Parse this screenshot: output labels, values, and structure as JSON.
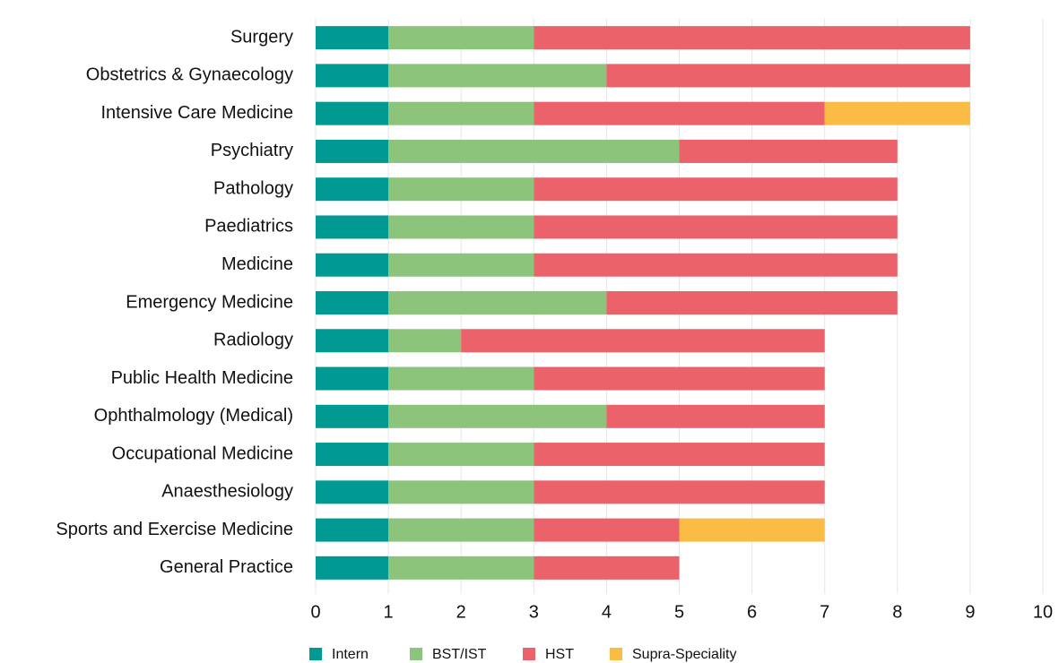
{
  "chart_data": {
    "type": "bar",
    "orientation": "horizontal",
    "stacked": true,
    "categories": [
      "Surgery",
      "Obstetrics & Gynaecology",
      "Intensive Care Medicine",
      "Psychiatry",
      "Pathology",
      "Paediatrics",
      "Medicine",
      "Emergency Medicine",
      "Radiology",
      "Public Health Medicine",
      "Ophthalmology (Medical)",
      "Occupational Medicine",
      "Anaesthesiology",
      "Sports and Exercise Medicine",
      "General Practice"
    ],
    "series": [
      {
        "name": "Intern",
        "color": "#009a93",
        "values": [
          1,
          1,
          1,
          1,
          1,
          1,
          1,
          1,
          1,
          1,
          1,
          1,
          1,
          1,
          1
        ]
      },
      {
        "name": "BST/IST",
        "color": "#8cc47c",
        "values": [
          2,
          3,
          2,
          4,
          2,
          2,
          2,
          3,
          1,
          2,
          3,
          2,
          2,
          2,
          2
        ]
      },
      {
        "name": "HST",
        "color": "#ec626b",
        "values": [
          6,
          5,
          4,
          3,
          5,
          5,
          5,
          4,
          5,
          4,
          3,
          4,
          4,
          2,
          2
        ]
      },
      {
        "name": "Supra-Speciality",
        "color": "#fbbc45",
        "values": [
          0,
          0,
          2,
          0,
          0,
          0,
          0,
          0,
          0,
          0,
          0,
          0,
          0,
          2,
          0
        ]
      }
    ],
    "xlim": [
      0,
      10
    ],
    "xticks": [
      0,
      1,
      2,
      3,
      4,
      5,
      6,
      7,
      8,
      9,
      10
    ],
    "grid": true,
    "legend": "bottom"
  }
}
